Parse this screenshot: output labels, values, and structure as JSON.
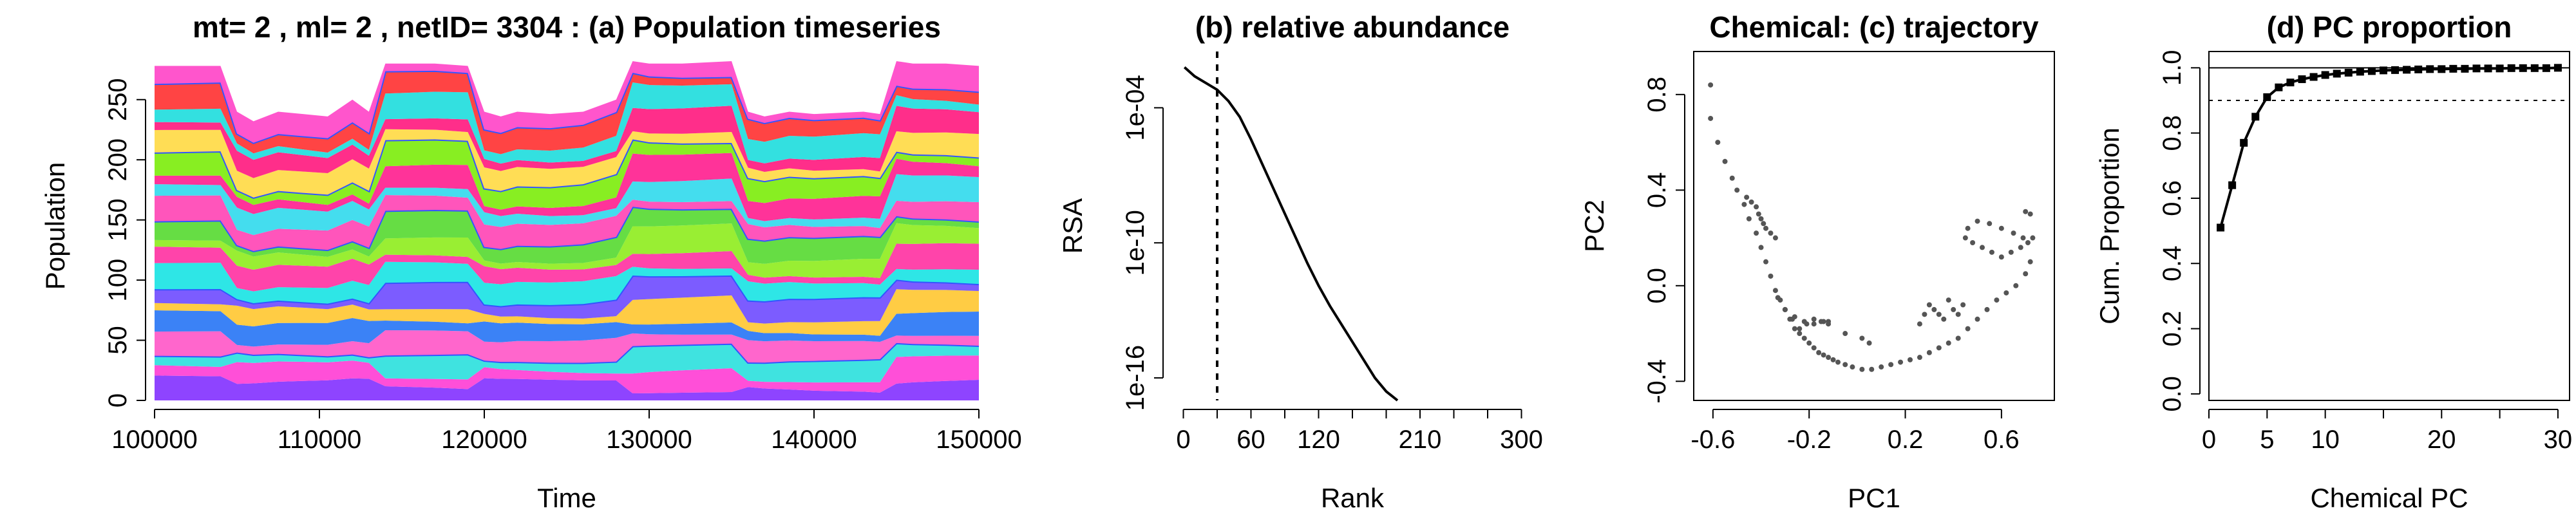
{
  "colors": {
    "stack": [
      "#8E44FF",
      "#FF4FD8",
      "#3FE3E0",
      "#FF66CC",
      "#3B82F6",
      "#FFCC44",
      "#7C5CFF",
      "#2EE6E6",
      "#FF44AA",
      "#99EE33",
      "#66DD44",
      "#FF55BB",
      "#44DDEE",
      "#FF3399",
      "#88EE22",
      "#FFDD55",
      "#FF2E8A",
      "#33E0E0",
      "#FF4444",
      "#FF55CC"
    ],
    "line": "#000000",
    "scatter": "#555555"
  },
  "chart_data": [
    {
      "type": "area",
      "title": "mt= 2 , ml= 2 , netID= 3304 : (a) Population timeseries",
      "xlabel": "Time",
      "ylabel": "Population",
      "xlim": [
        100000,
        150000
      ],
      "ylim": [
        0,
        290
      ],
      "xticks": [
        "100000",
        "110000",
        "120000",
        "130000",
        "140000",
        "150000"
      ],
      "xtick_values": [
        100000,
        110000,
        120000,
        130000,
        140000,
        150000
      ],
      "yticks": [
        "0",
        "50",
        "100",
        "150",
        "200",
        "250"
      ],
      "ytick_values": [
        0,
        50,
        100,
        150,
        200,
        250
      ],
      "series_count": 20,
      "x": [
        100000,
        104000,
        105000,
        106000,
        107500,
        109000,
        110500,
        112000,
        113000,
        114000,
        117000,
        119000,
        120000,
        121000,
        122000,
        124000,
        126000,
        128000,
        129000,
        130000,
        132000,
        135000,
        136000,
        137000,
        138500,
        140000,
        143000,
        144000,
        145000,
        146000,
        148000,
        150000
      ],
      "total": [
        278,
        278,
        240,
        232,
        240,
        238,
        236,
        250,
        240,
        280,
        280,
        278,
        240,
        236,
        240,
        238,
        240,
        250,
        282,
        280,
        280,
        282,
        240,
        236,
        240,
        238,
        240,
        238,
        282,
        280,
        280,
        278
      ]
    },
    {
      "type": "line",
      "title": "(b) relative abundance",
      "xlabel": "Rank",
      "ylabel": "RSA",
      "log_y": true,
      "ylim_log10": [
        -17,
        -1.5
      ],
      "xlim": [
        -10,
        310
      ],
      "xticks": [
        "0",
        "60",
        "120",
        "210",
        "300"
      ],
      "xtick_values": [
        0,
        60,
        120,
        210,
        300
      ],
      "xticks_minor": [
        30,
        90,
        150,
        180,
        240,
        270
      ],
      "yticks": [
        "1e-16",
        "1e-10",
        "1e-04"
      ],
      "ytick_log10": [
        -16,
        -10,
        -4
      ],
      "vline_x": 30,
      "x": [
        1,
        10,
        20,
        30,
        40,
        50,
        60,
        70,
        80,
        90,
        100,
        110,
        120,
        130,
        140,
        150,
        160,
        170,
        180,
        190
      ],
      "log10_y": [
        -2.2,
        -2.6,
        -2.9,
        -3.2,
        -3.7,
        -4.4,
        -5.4,
        -6.5,
        -7.6,
        -8.7,
        -9.8,
        -10.9,
        -11.9,
        -12.8,
        -13.6,
        -14.4,
        -15.2,
        -16.0,
        -16.6,
        -17.0
      ]
    },
    {
      "type": "scatter",
      "title": "Chemical: (c) trajectory",
      "xlabel": "PC1",
      "ylabel": "PC2",
      "xlim": [
        -0.68,
        0.82
      ],
      "ylim": [
        -0.48,
        0.98
      ],
      "xticks": [
        "-0.6",
        "-0.2",
        "0.2",
        "0.6"
      ],
      "xtick_values": [
        -0.6,
        -0.2,
        0.2,
        0.6
      ],
      "yticks": [
        "-0.4",
        "0.0",
        "0.4",
        "0.8"
      ],
      "ytick_values": [
        -0.4,
        0.0,
        0.4,
        0.8
      ],
      "x": [
        -0.61,
        -0.61,
        -0.58,
        -0.55,
        -0.52,
        -0.5,
        -0.47,
        -0.45,
        -0.42,
        -0.4,
        -0.38,
        -0.36,
        -0.34,
        -0.32,
        -0.3,
        -0.28,
        -0.26,
        -0.24,
        -0.22,
        -0.2,
        -0.18,
        -0.16,
        -0.14,
        -0.12,
        -0.1,
        -0.08,
        -0.05,
        -0.02,
        0.02,
        0.06,
        0.1,
        0.14,
        0.18,
        0.22,
        0.26,
        0.3,
        0.34,
        0.38,
        0.42,
        0.46,
        0.5,
        0.54,
        0.58,
        0.62,
        0.66,
        0.7,
        0.72,
        0.73,
        0.72,
        0.7,
        -0.46,
        -0.44,
        -0.42,
        -0.41,
        -0.4,
        -0.39,
        -0.38,
        -0.36,
        -0.34,
        -0.3,
        -0.26,
        -0.22,
        -0.18,
        -0.14,
        -0.12,
        0.45,
        0.48,
        0.52,
        0.56,
        0.6,
        0.64,
        0.68,
        0.71,
        0.46,
        0.5,
        0.55,
        0.6,
        0.65,
        0.69,
        0.38,
        0.4,
        0.42,
        0.44,
        0.36,
        0.34,
        0.32,
        0.3,
        0.28,
        0.26,
        -0.05,
        0.02,
        0.05,
        -0.33,
        -0.3,
        -0.27,
        -0.24,
        -0.21,
        -0.18,
        -0.15,
        -0.12
      ],
      "y": [
        0.84,
        0.7,
        0.6,
        0.52,
        0.45,
        0.4,
        0.34,
        0.28,
        0.22,
        0.16,
        0.1,
        0.04,
        -0.02,
        -0.06,
        -0.1,
        -0.14,
        -0.18,
        -0.2,
        -0.22,
        -0.24,
        -0.26,
        -0.28,
        -0.29,
        -0.3,
        -0.31,
        -0.32,
        -0.33,
        -0.34,
        -0.35,
        -0.35,
        -0.34,
        -0.33,
        -0.32,
        -0.31,
        -0.3,
        -0.28,
        -0.26,
        -0.24,
        -0.22,
        -0.18,
        -0.14,
        -0.1,
        -0.06,
        -0.03,
        0.0,
        0.05,
        0.1,
        0.2,
        0.3,
        0.31,
        0.37,
        0.35,
        0.33,
        0.3,
        0.28,
        0.26,
        0.24,
        0.22,
        0.2,
        -0.1,
        -0.13,
        -0.15,
        -0.16,
        -0.15,
        -0.15,
        0.2,
        0.18,
        0.16,
        0.14,
        0.12,
        0.14,
        0.16,
        0.18,
        0.24,
        0.27,
        0.26,
        0.24,
        0.22,
        0.2,
        -0.06,
        -0.1,
        -0.12,
        -0.08,
        -0.14,
        -0.12,
        -0.1,
        -0.08,
        -0.12,
        -0.16,
        -0.2,
        -0.22,
        -0.24,
        -0.05,
        -0.1,
        -0.14,
        -0.18,
        -0.16,
        -0.14,
        -0.15,
        -0.16
      ]
    },
    {
      "type": "line",
      "title": "(d) PC proportion",
      "xlabel": "Chemical PC",
      "ylabel": "Cum. Proportion",
      "xlim": [
        0,
        31
      ],
      "ylim": [
        -0.02,
        1.05
      ],
      "xticks": [
        "0",
        "5",
        "10",
        "20",
        "30"
      ],
      "xtick_values": [
        0,
        5,
        10,
        20,
        30
      ],
      "xticks_minor": [
        15,
        25
      ],
      "yticks": [
        "0.0",
        "0.2",
        "0.4",
        "0.6",
        "0.8",
        "1.0"
      ],
      "ytick_values": [
        0,
        0.2,
        0.4,
        0.6,
        0.8,
        1.0
      ],
      "hline_solid": 1.0,
      "hline_dotted": 0.9,
      "x": [
        1,
        2,
        3,
        4,
        5,
        6,
        7,
        8,
        9,
        10,
        11,
        12,
        13,
        14,
        15,
        16,
        17,
        18,
        19,
        20,
        21,
        22,
        23,
        24,
        25,
        26,
        27,
        28,
        29,
        30
      ],
      "values": [
        0.51,
        0.64,
        0.77,
        0.85,
        0.91,
        0.94,
        0.955,
        0.965,
        0.972,
        0.978,
        0.982,
        0.985,
        0.988,
        0.99,
        0.992,
        0.993,
        0.994,
        0.995,
        0.996,
        0.996,
        0.997,
        0.997,
        0.998,
        0.998,
        0.998,
        0.999,
        0.999,
        0.999,
        0.999,
        1.0
      ]
    }
  ]
}
